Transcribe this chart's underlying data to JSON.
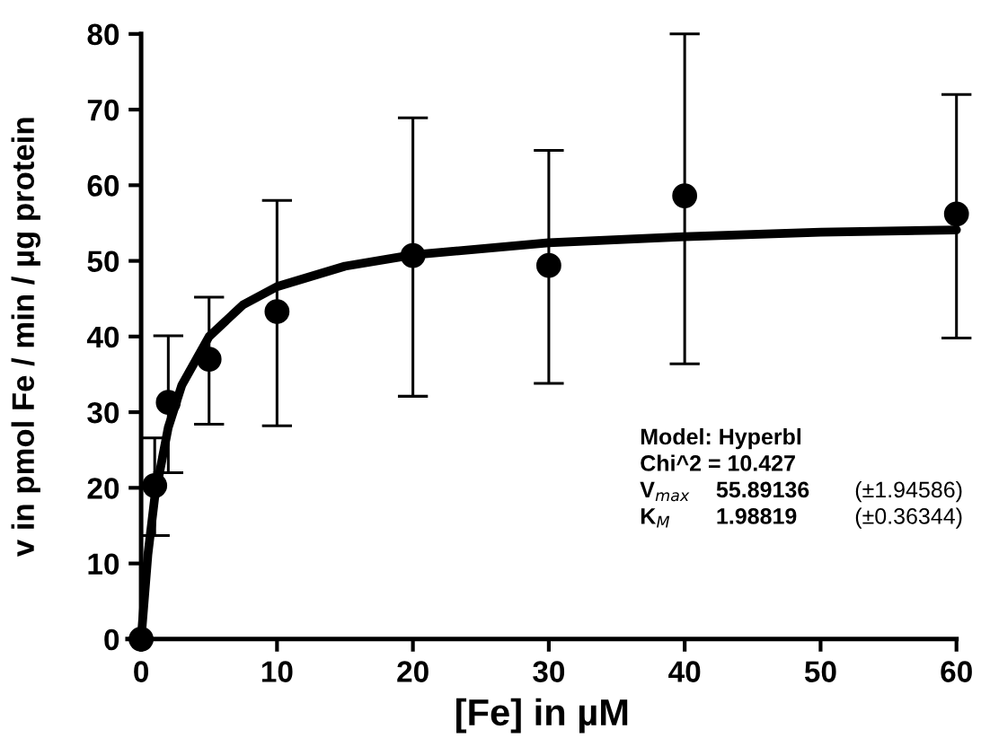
{
  "chart_data": {
    "type": "scatter",
    "xlabel": "[Fe] in µM",
    "ylabel": "v in pmol Fe / min / µg protein",
    "xlim": [
      -1,
      60
    ],
    "xticks": [
      0,
      10,
      20,
      30,
      40,
      50,
      60
    ],
    "ylim": [
      0,
      80
    ],
    "yticks": [
      0,
      10,
      20,
      30,
      40,
      50,
      60,
      70,
      80
    ],
    "grid": false,
    "marker": "circle",
    "series": [
      {
        "color": "#000000",
        "x": [
          0,
          1,
          2,
          5,
          10,
          20,
          30,
          40,
          60
        ],
        "values": [
          0,
          20.3,
          31.3,
          37,
          43.3,
          50.7,
          49.4,
          58.6,
          56.2
        ],
        "errors": [
          null,
          [
            13.7,
            26.6
          ],
          [
            22,
            40.1
          ],
          [
            28.4,
            45.2
          ],
          [
            28.2,
            58
          ],
          [
            32.1,
            68.9
          ],
          [
            33.8,
            64.6
          ],
          [
            36.4,
            80
          ],
          [
            39.8,
            72
          ]
        ]
      },
      {
        "type": "line",
        "marker": "none",
        "color": "#000000",
        "x": [
          0,
          0.5,
          1,
          2,
          3,
          5,
          7.5,
          10,
          15,
          20,
          30,
          40,
          50,
          60
        ],
        "values": [
          0,
          11.2,
          18.7,
          28.0,
          33.6,
          40.0,
          44.2,
          46.6,
          49.3,
          50.8,
          52.4,
          53.2,
          53.8,
          54.1
        ]
      }
    ],
    "annotations": [
      "Model: Hyperbl",
      "Chi^2 = 10.427",
      "V$_{max}$",
      "55.89136",
      "(±1.94586)",
      "K$_{M}$",
      "1.98819",
      "(±0.36344)"
    ]
  }
}
